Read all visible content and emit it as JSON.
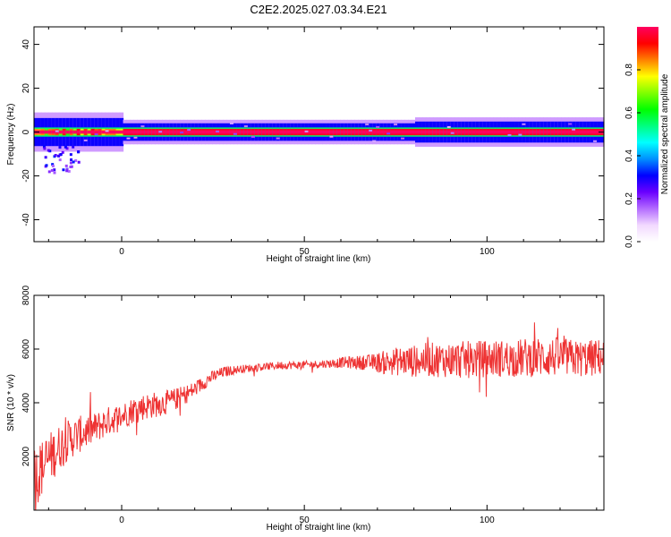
{
  "title": "C2E2.2025.027.03.34.E21",
  "chart_data": [
    {
      "type": "heatmap",
      "xlabel": "Height of straight line (km)",
      "ylabel": "Frequency (Hz)",
      "xlim": [
        -24,
        132
      ],
      "ylim": [
        -50,
        48
      ],
      "xticks": [
        0,
        50,
        100
      ],
      "yticks": [
        -40,
        -20,
        0,
        20,
        40
      ],
      "colorbar": {
        "label": "Normalized spectral amplitude",
        "range": [
          0,
          1
        ],
        "ticks": [
          "0.0",
          "0.2",
          "0.4",
          "0.6",
          "0.8"
        ],
        "colormap": [
          "#ffffff",
          "#f2d9ff",
          "#b36bff",
          "#6a00ff",
          "#0000ff",
          "#0090ff",
          "#00ffff",
          "#00ff80",
          "#00ff00",
          "#80ff00",
          "#ffff00",
          "#ff8000",
          "#ff0000",
          "#ff0060"
        ]
      },
      "features": [
        {
          "name": "main-band",
          "x_range": [
            -24,
            132
          ],
          "freq_center": 0,
          "freq_halfwidth": 1.5,
          "level": 0.95
        },
        {
          "name": "side-band",
          "x_range": [
            -24,
            132
          ],
          "freq_center": 0,
          "freq_halfwidth": 4,
          "level": 0.3
        },
        {
          "name": "early-spread",
          "x_range": [
            -22,
            -12
          ],
          "freq_range": [
            -18,
            -6
          ],
          "level": 0.15
        }
      ]
    },
    {
      "type": "line",
      "xlabel": "Height of straight line (km)",
      "ylabel": "SNR (10 * v/v)",
      "xlim": [
        -24,
        132
      ],
      "ylim": [
        0,
        8000
      ],
      "xticks": [
        0,
        50,
        100
      ],
      "yticks": [
        2000,
        4000,
        6000,
        8000
      ],
      "series": [
        {
          "color": "#ee3333",
          "x": [
            -24,
            -20,
            -16,
            -12,
            -8,
            -4,
            0,
            4,
            8,
            12,
            16,
            20,
            24,
            28,
            32,
            36,
            40,
            44,
            48,
            52,
            56,
            60,
            64,
            68,
            72,
            76,
            80,
            84,
            88,
            92,
            96,
            100,
            104,
            108,
            112,
            116,
            120,
            124,
            128,
            132
          ],
          "y": [
            1200,
            1900,
            2500,
            2800,
            3000,
            3300,
            3500,
            3800,
            3900,
            4000,
            4200,
            4500,
            4900,
            5150,
            5250,
            5300,
            5350,
            5400,
            5400,
            5420,
            5450,
            5500,
            5500,
            5500,
            5500,
            5550,
            5550,
            5600,
            5600,
            5600,
            5600,
            5650,
            5650,
            5650,
            5700,
            5700,
            5700,
            5650,
            5650,
            5700
          ],
          "noise": [
            1200,
            1000,
            800,
            700,
            600,
            550,
            500,
            500,
            500,
            450,
            400,
            300,
            250,
            200,
            150,
            150,
            150,
            150,
            150,
            150,
            150,
            200,
            250,
            300,
            450,
            550,
            600,
            650,
            650,
            700,
            700,
            700,
            700,
            700,
            750,
            750,
            750,
            700,
            700,
            700
          ]
        }
      ]
    }
  ]
}
